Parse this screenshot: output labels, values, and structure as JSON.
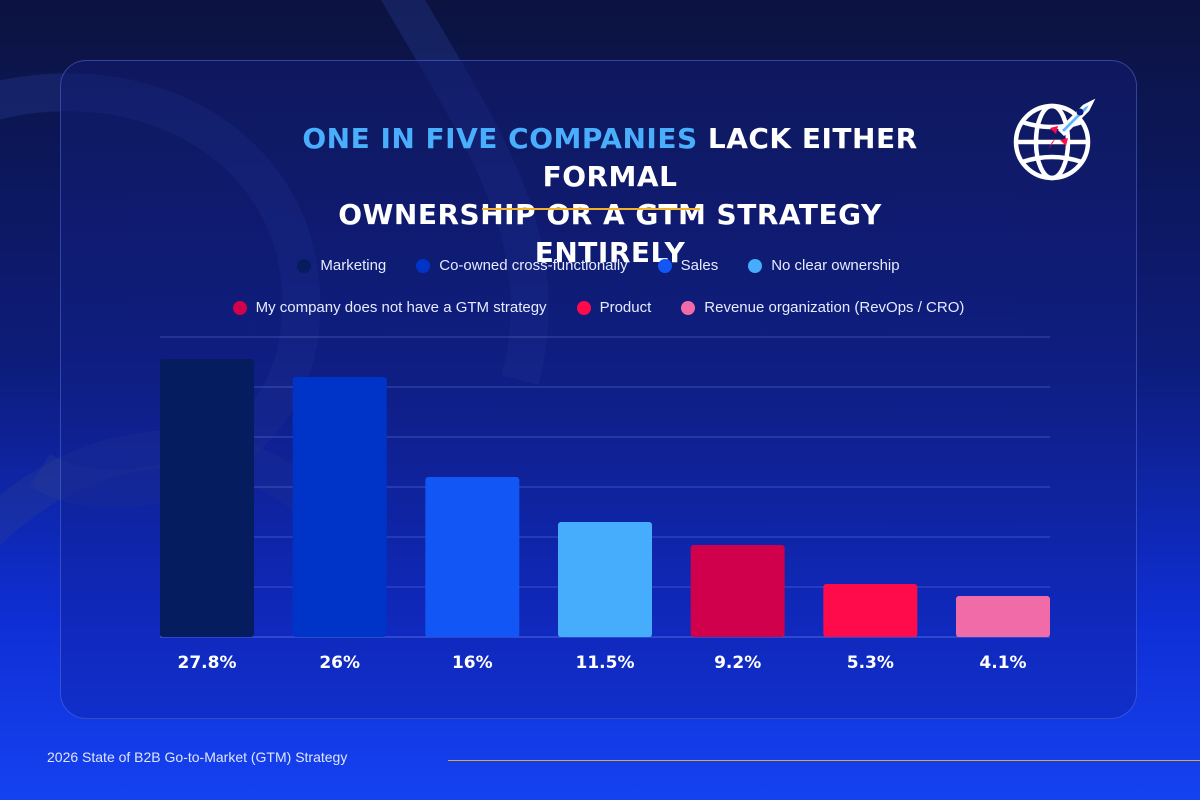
{
  "title": {
    "highlight": "ONE IN FIVE COMPANIES",
    "rest_line1": " LACK EITHER FORMAL",
    "line2": "OWNERSHIP OR A GTM STRATEGY ENTIRELY"
  },
  "logo": {
    "icon": "globe-rocket-icon"
  },
  "chart_data": {
    "type": "bar",
    "title": "ONE IN FIVE COMPANIES LACK EITHER FORMAL OWNERSHIP OR A GTM STRATEGY ENTIRELY",
    "categories": [
      "Marketing",
      "Co-owned cross-functionally",
      "Sales",
      "No clear ownership",
      "My company does not have a GTM strategy",
      "Product",
      "Revenue organization (RevOps / CRO)"
    ],
    "values": [
      27.8,
      26,
      16,
      11.5,
      9.2,
      5.3,
      4.1
    ],
    "value_labels": [
      "27.8%",
      "26%",
      "16%",
      "11.5%",
      "9.2%",
      "5.3%",
      "4.1%"
    ],
    "colors": [
      "#051c5e",
      "#0033c8",
      "#1257f5",
      "#46adfd",
      "#d1004d",
      "#ff0a4a",
      "#f06ba8"
    ],
    "ylim": [
      0,
      30
    ],
    "grid": true,
    "xlabel": "",
    "ylabel": "",
    "legend": "top"
  },
  "footer": {
    "text": "2026 State of B2B Go-to-Market (GTM) Strategy"
  }
}
